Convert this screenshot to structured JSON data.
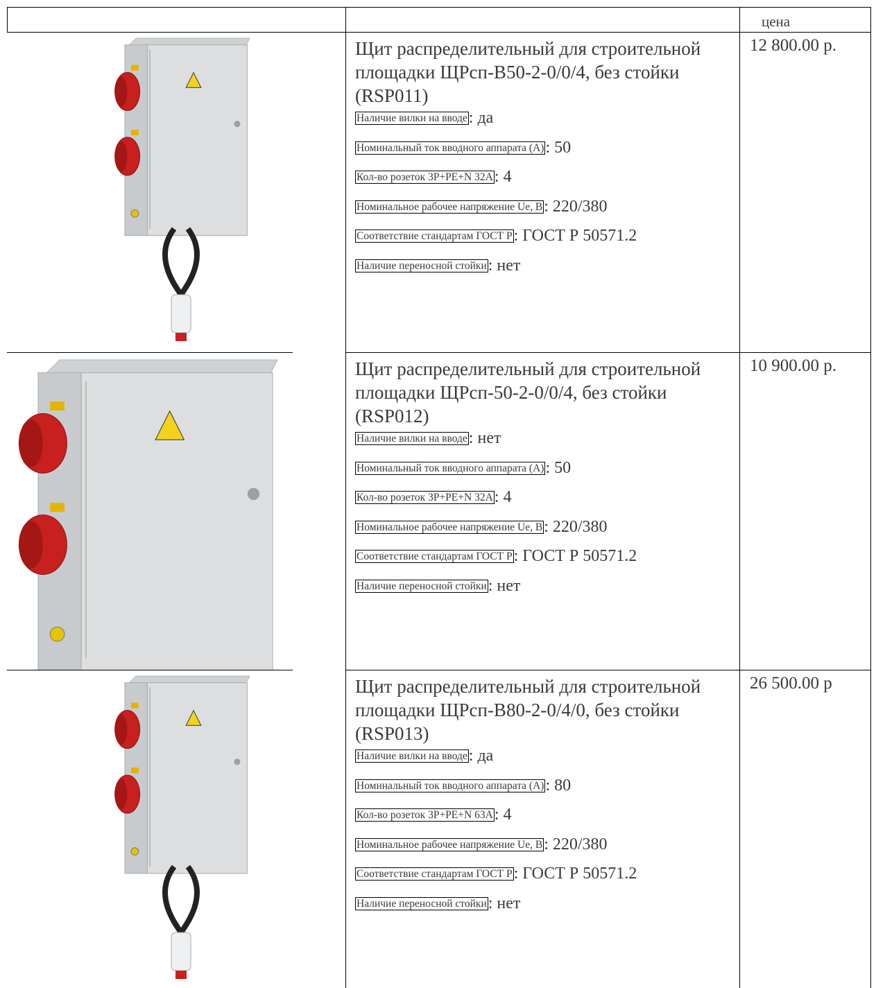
{
  "header": {
    "price_label": "цена"
  },
  "separator": ":",
  "rows": [
    {
      "title": "Щит распределительный для строительной площадки ЩРсп-В50-2-0/0/4, без стойки (RSP011)",
      "specs": [
        {
          "label": "Наличие вилки на вводе",
          "value": "да"
        },
        {
          "label": "Номинальный ток вводного аппарата (А)",
          "value": "50"
        },
        {
          "label": "Кол-во розеток 3P+PE+N 32A",
          "value": "4"
        },
        {
          "label": "Номинальное рабочее напряжение Ue, В",
          "value": "220/380"
        },
        {
          "label": "Соответствие стандартам ГОСТ Р",
          "value": "ГОСТ Р 50571.2"
        },
        {
          "label": "Наличие переносной стойки",
          "value": "нет"
        }
      ],
      "price": "12 800.00 р."
    },
    {
      "title": "Щит распределительный для строительной площадки ЩРсп-50-2-0/0/4, без стойки (RSP012)",
      "specs": [
        {
          "label": "Наличие вилки на вводе",
          "value": "нет"
        },
        {
          "label": "Номинальный ток вводного аппарата (А)",
          "value": "50"
        },
        {
          "label": "Кол-во розеток 3P+PE+N 32A",
          "value": "4"
        },
        {
          "label": "Номинальное рабочее напряжение Ue, В",
          "value": "220/380"
        },
        {
          "label": "Соответствие стандартам ГОСТ Р",
          "value": "ГОСТ Р 50571.2"
        },
        {
          "label": "Наличие переносной стойки",
          "value": "нет"
        }
      ],
      "price": "10 900.00 р."
    },
    {
      "title": "Щит распределительный для строительной площадки ЩРсп-В80-2-0/4/0, без стойки (RSP013)",
      "specs": [
        {
          "label": "Наличие вилки на вводе",
          "value": "да"
        },
        {
          "label": "Номинальный ток вводного аппарата (А)",
          "value": "80"
        },
        {
          "label": "Кол-во розеток 3P+PE+N 63A",
          "value": "4"
        },
        {
          "label": "Номинальное рабочее напряжение Ue, В",
          "value": "220/380"
        },
        {
          "label": "Соответствие стандартам ГОСТ Р",
          "value": "ГОСТ Р 50571.2"
        },
        {
          "label": "Наличие переносной стойки",
          "value": "нет"
        }
      ],
      "price": "26 500.00 р"
    }
  ]
}
